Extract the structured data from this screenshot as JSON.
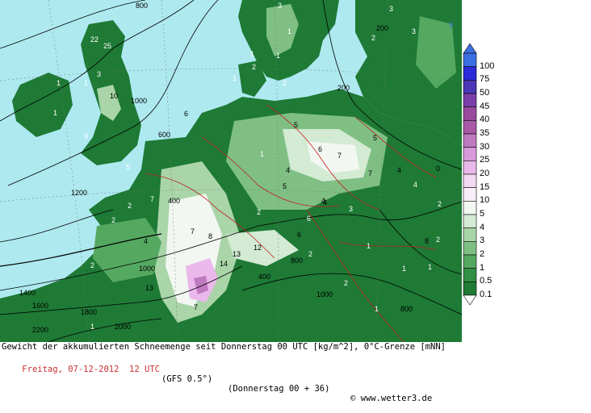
{
  "map": {
    "sea_color": "#aee9f0",
    "land_color": "#1e7a35",
    "contour_labels": [
      "800",
      "1000",
      "1200",
      "1400",
      "1600",
      "1800",
      "2000",
      "2200",
      "1000",
      "600",
      "400",
      "800",
      "200",
      "0",
      "200",
      "1000",
      "800",
      "400"
    ],
    "value_labels": [
      "25",
      "22",
      "3",
      "1",
      "1",
      "1",
      "10",
      "9",
      "5",
      "2",
      "2",
      "1",
      "7",
      "2",
      "4",
      "8",
      "2",
      "6",
      "4",
      "13",
      "14",
      "13",
      "12",
      "7",
      "7",
      "1",
      "5",
      "6",
      "7",
      "5",
      "4",
      "4",
      "4",
      "6",
      "5",
      "3",
      "1",
      "2",
      "1",
      "2",
      "1",
      "1",
      "2",
      "3",
      "3",
      "4",
      "8",
      "9",
      "2",
      "2",
      "1",
      "3",
      "1",
      "2",
      "1",
      "2",
      "1",
      "6",
      "7"
    ]
  },
  "colorbar": {
    "labels": [
      "100",
      "75",
      "50",
      "45",
      "40",
      "35",
      "30",
      "25",
      "20",
      "15",
      "10",
      "5",
      "4",
      "3",
      "2",
      "1",
      "0.5",
      "0.1"
    ],
    "colors": [
      "#3b6fe0",
      "#2a2ad8",
      "#4a37b5",
      "#7a3fa8",
      "#9a4a9e",
      "#a85aa8",
      "#c07ac0",
      "#d89ad8",
      "#eab8ea",
      "#f2d8f2",
      "#f8eef8",
      "#f2f7f2",
      "#d3ead3",
      "#a9d5a9",
      "#7fbf84",
      "#55a860",
      "#2f8f45",
      "#1e7a35"
    ]
  },
  "caption": {
    "line1": "Gewicht der akkumulierten Schneemenge seit Donnerstag 00 UTC [kg/m^2], 0°C-Grenze [mNN]",
    "date": "Freitag, 07-12-2012  12 UTC",
    "model": "(GFS 0.5°)",
    "run": "(Donnerstag 00 + 36)",
    "copyright": "© www.wetter3.de"
  }
}
